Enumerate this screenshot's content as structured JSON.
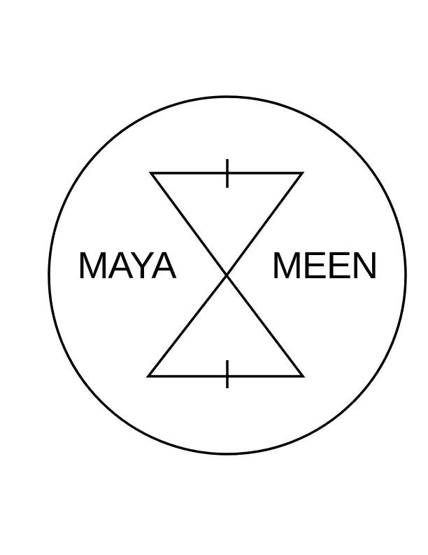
{
  "diagram": {
    "labels": {
      "left": "MAYA",
      "right": "MEEN"
    },
    "stroke_color": "#000000",
    "background_color": "#ffffff"
  }
}
